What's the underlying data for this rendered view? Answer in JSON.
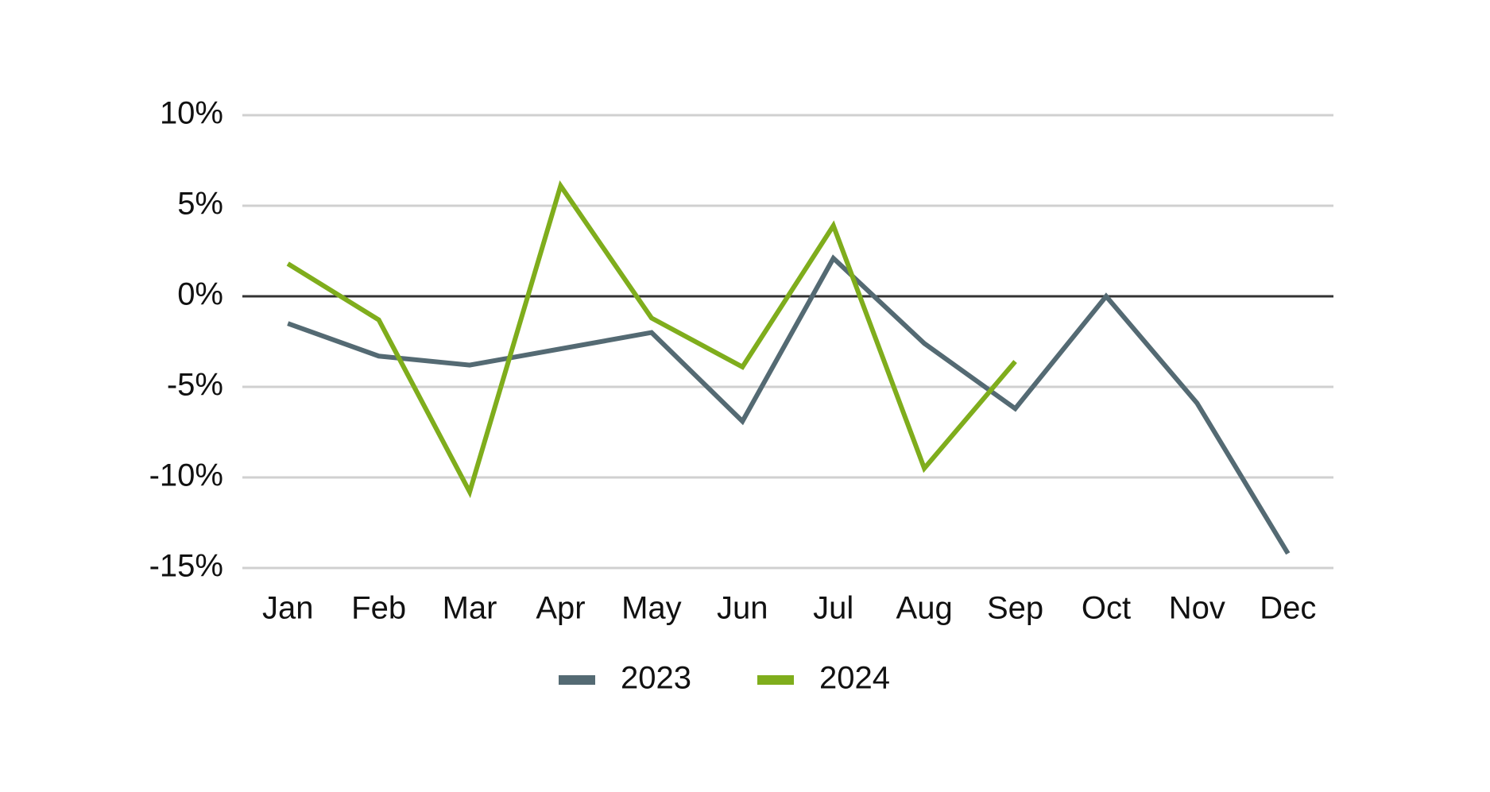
{
  "chart_data": {
    "type": "line",
    "categories": [
      "Jan",
      "Feb",
      "Mar",
      "Apr",
      "May",
      "Jun",
      "Jul",
      "Aug",
      "Sep",
      "Oct",
      "Nov",
      "Dec"
    ],
    "series": [
      {
        "name": "2023",
        "color": "#546a73",
        "values": [
          -1.5,
          -3.3,
          -3.8,
          -2.9,
          -2.0,
          -6.9,
          2.1,
          -2.6,
          -6.2,
          0,
          -5.9,
          -14.2
        ]
      },
      {
        "name": "2024",
        "color": "#7fad1c",
        "values": [
          1.8,
          -1.3,
          -10.8,
          6.1,
          -1.2,
          -3.9,
          3.9,
          -9.5,
          -3.6,
          null,
          null,
          null
        ]
      }
    ],
    "ylim": [
      -15,
      10
    ],
    "yticks": [
      {
        "value": -15,
        "label": "-15%"
      },
      {
        "value": -10,
        "label": "-10%"
      },
      {
        "value": -5,
        "label": "-5%"
      },
      {
        "value": 0,
        "label": "0%"
      },
      {
        "value": 5,
        "label": "5%"
      },
      {
        "value": 10,
        "label": "10%"
      }
    ],
    "grid": true
  }
}
